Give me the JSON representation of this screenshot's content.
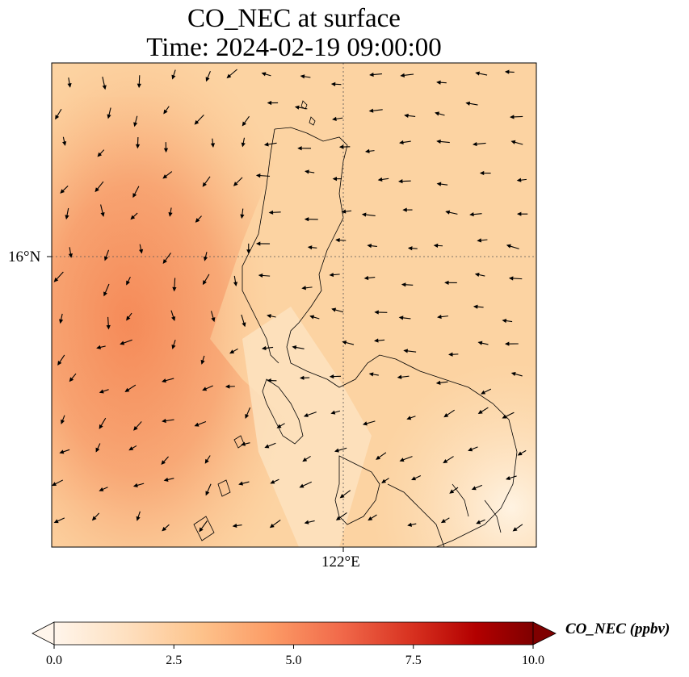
{
  "title": {
    "line1": "CO_NEC at surface",
    "line2": "Time: 2024-02-19 09:00:00"
  },
  "axes": {
    "lat_label": "16°N",
    "lon_label": "122°E"
  },
  "colorbar": {
    "label": "CO_NEC (ppbv)",
    "ticks": [
      "0.0",
      "2.5",
      "5.0",
      "7.5",
      "10.0"
    ],
    "range": [
      0,
      10
    ],
    "colors": [
      "#fff5eb",
      "#fdd49e",
      "#fdbb84",
      "#fc8d59",
      "#ef6548",
      "#d7301f",
      "#b30000",
      "#7f0000"
    ]
  },
  "map": {
    "background_color": "#fcd09e",
    "west_plume_color": "#f6935f",
    "southeast_clean_color": "#fff0dc",
    "coastline_color": "#000000",
    "gridline_color": "#555555"
  }
}
